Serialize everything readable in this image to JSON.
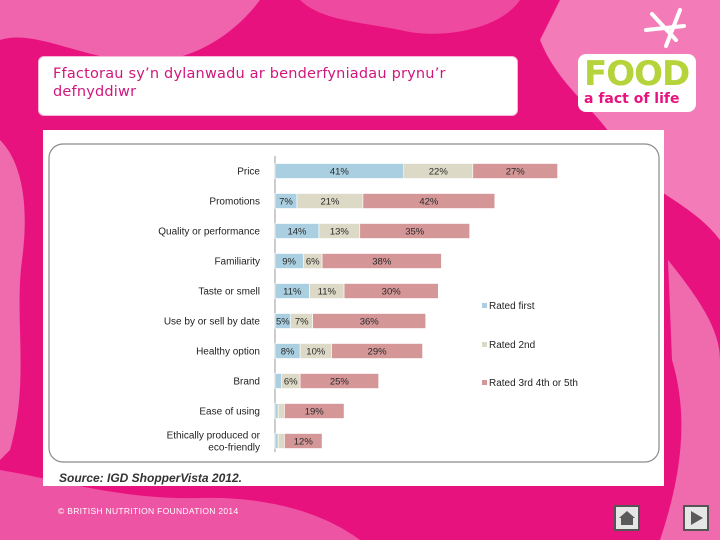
{
  "slide": {
    "title": "Ffactorau sy’n dylanwadu ar benderfyniadau prynu’r defnyddiwr",
    "logo_word": "FOOD",
    "logo_tagline": "a fact of life",
    "footer": "© BRITISH NUTRITION FOUNDATION 2014",
    "colors": {
      "background": "#e8127f",
      "accent_green": "#b5d33a",
      "title_text": "#d0177c"
    }
  },
  "chart_data": {
    "type": "bar",
    "stacked": true,
    "orientation": "horizontal",
    "title": "",
    "categories": [
      "Price",
      "Promotions",
      "Quality or performance",
      "Familiarity",
      "Taste or smell",
      "Use by or sell by date",
      "Healthy option",
      "Brand",
      "Ease of using",
      "Ethically produced or eco-friendly"
    ],
    "series": [
      {
        "name": "Rated first",
        "color": "#a9cfe1",
        "values": [
          41,
          7,
          14,
          9,
          11,
          5,
          8,
          2,
          1,
          1
        ],
        "labels": [
          "41%",
          "7%",
          "14%",
          "9%",
          "11%",
          "5%",
          "8%",
          "",
          "",
          ""
        ]
      },
      {
        "name": "Rated 2nd",
        "color": "#dcdac6",
        "values": [
          22,
          21,
          13,
          6,
          11,
          7,
          10,
          6,
          2,
          2
        ],
        "labels": [
          "22%",
          "21%",
          "13%",
          "6%",
          "11%",
          "7%",
          "10%",
          "6%",
          "",
          ""
        ]
      },
      {
        "name": "Rated 3rd 4th or 5th",
        "color": "#d49697",
        "values": [
          27,
          42,
          35,
          38,
          30,
          36,
          29,
          25,
          19,
          12
        ],
        "labels": [
          "27%",
          "42%",
          "35%",
          "38%",
          "30%",
          "36%",
          "29%",
          "25%",
          "19%",
          "12%"
        ]
      }
    ],
    "xlim": [
      0,
      100
    ],
    "legend_position": "right",
    "source": "Source: IGD ShopperVista 2012."
  }
}
